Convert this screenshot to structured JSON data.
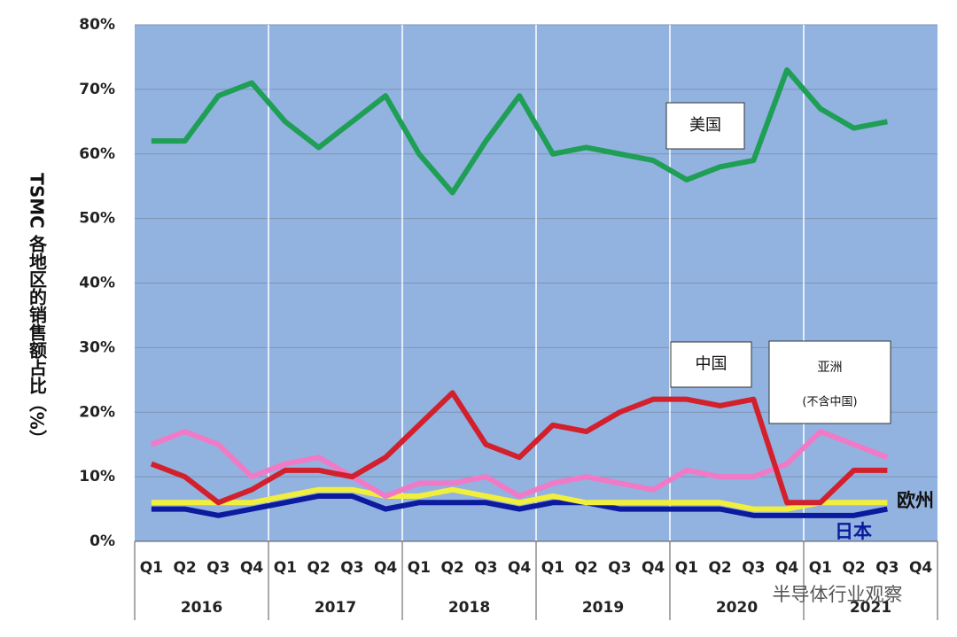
{
  "chart_data": {
    "type": "line",
    "ylabel": "TSMC 各地区的销售额占比（%）",
    "categories": [
      "Q1",
      "Q2",
      "Q3",
      "Q4",
      "Q1",
      "Q2",
      "Q3",
      "Q4",
      "Q1",
      "Q2",
      "Q3",
      "Q4",
      "Q1",
      "Q2",
      "Q3",
      "Q4",
      "Q1",
      "Q2",
      "Q3",
      "Q4",
      "Q1",
      "Q2",
      "Q3",
      "Q4"
    ],
    "years": [
      "2016",
      "2017",
      "2018",
      "2019",
      "2020",
      "2021"
    ],
    "ylim": [
      0,
      80
    ],
    "yticks": [
      {
        "value": 0,
        "label": "0%"
      },
      {
        "value": 10,
        "label": "10%"
      },
      {
        "value": 20,
        "label": "20%"
      },
      {
        "value": 30,
        "label": "30%"
      },
      {
        "value": 40,
        "label": "40%"
      },
      {
        "value": 50,
        "label": "50%"
      },
      {
        "value": 60,
        "label": "60%"
      },
      {
        "value": 70,
        "label": "70%"
      },
      {
        "value": 80,
        "label": "80%"
      }
    ],
    "grid": true,
    "series": [
      {
        "name": "美国",
        "color": "#1f9e55",
        "values": [
          62,
          62,
          69,
          71,
          65,
          61,
          65,
          69,
          60,
          54,
          62,
          69,
          60,
          61,
          60,
          59,
          56,
          58,
          59,
          73,
          67,
          64,
          65,
          null
        ]
      },
      {
        "name": "中国",
        "color": "#d2202c",
        "values": [
          12,
          10,
          6,
          8,
          11,
          11,
          10,
          13,
          18,
          23,
          15,
          13,
          18,
          17,
          20,
          22,
          22,
          21,
          22,
          6,
          6,
          11,
          11,
          null
        ]
      },
      {
        "name": "亚洲",
        "note": "(不含中国)",
        "color": "#f07ac6",
        "values": [
          15,
          17,
          15,
          10,
          12,
          13,
          10,
          7,
          9,
          9,
          10,
          7,
          9,
          10,
          9,
          8,
          11,
          10,
          10,
          12,
          17,
          15,
          13,
          null
        ]
      },
      {
        "name": "欧州",
        "color": "#f2ef3c",
        "values": [
          6,
          6,
          6,
          6,
          7,
          8,
          8,
          7,
          7,
          8,
          7,
          6,
          7,
          6,
          6,
          6,
          6,
          6,
          5,
          5,
          6,
          6,
          6,
          null
        ]
      },
      {
        "name": "日本",
        "color": "#0c1a9e",
        "values": [
          5,
          5,
          4,
          5,
          6,
          7,
          7,
          5,
          6,
          6,
          6,
          5,
          6,
          6,
          5,
          5,
          5,
          5,
          4,
          4,
          4,
          4,
          5,
          null
        ]
      }
    ],
    "watermark": "半导体行业观察"
  }
}
